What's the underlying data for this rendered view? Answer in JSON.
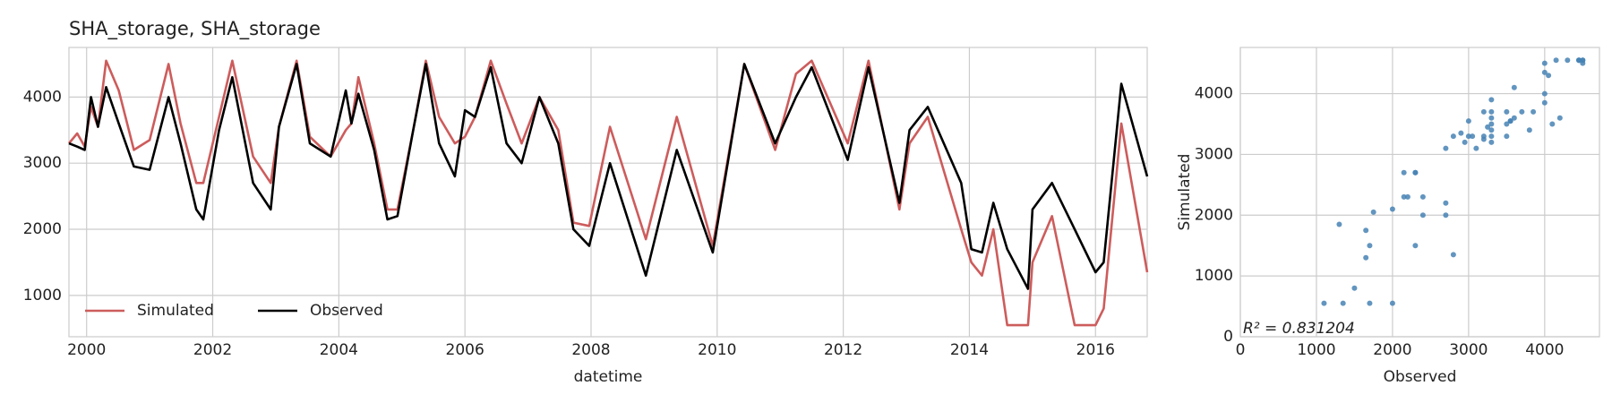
{
  "chart_data": [
    {
      "type": "line",
      "title": "SHA_storage, SHA_storage",
      "xlabel": "datetime",
      "x": [
        1999.72,
        1999.85,
        1999.97,
        2000.07,
        2000.18,
        2000.31,
        2000.51,
        2000.75,
        2001.0,
        2001.3,
        2001.49,
        2001.74,
        2001.85,
        2002.1,
        2002.31,
        2002.64,
        2002.92,
        2003.05,
        2003.33,
        2003.54,
        2003.87,
        2004.11,
        2004.2,
        2004.31,
        2004.56,
        2004.77,
        2004.93,
        2005.18,
        2005.38,
        2005.59,
        2005.84,
        2006.0,
        2006.16,
        2006.41,
        2006.66,
        2006.9,
        2007.18,
        2007.48,
        2007.72,
        2007.97,
        2008.3,
        2008.87,
        2009.36,
        2009.93,
        2010.43,
        2010.92,
        2011.25,
        2011.5,
        2012.07,
        2012.4,
        2012.89,
        2013.05,
        2013.34,
        2013.87,
        2014.03,
        2014.2,
        2014.38,
        2014.6,
        2014.93,
        2015.0,
        2015.31,
        2015.67,
        2016.0,
        2016.13,
        2016.41,
        2016.82
      ],
      "series": [
        {
          "name": "Simulated",
          "color": "#cd5c5c",
          "values": [
            3300,
            3450,
            3250,
            3850,
            3550,
            4550,
            4100,
            3200,
            3350,
            4500,
            3600,
            2700,
            2700,
            3700,
            4550,
            3100,
            2700,
            3550,
            4550,
            3400,
            3100,
            3500,
            3600,
            4300,
            3300,
            2300,
            2300,
            3500,
            4550,
            3700,
            3300,
            3400,
            3700,
            4550,
            3900,
            3300,
            4000,
            3500,
            2100,
            2050,
            3550,
            1850,
            3700,
            1750,
            4500,
            3200,
            4350,
            4550,
            3300,
            4550,
            2300,
            3300,
            3700,
            2000,
            1500,
            1300,
            2000,
            550,
            550,
            1500,
            2200,
            550,
            550,
            800,
            3600,
            1350
          ]
        },
        {
          "name": "Observed",
          "color": "#000000",
          "values": [
            3300,
            3250,
            3200,
            4000,
            3550,
            4150,
            3600,
            2950,
            2900,
            4000,
            3300,
            2300,
            2150,
            3500,
            4300,
            2700,
            2300,
            3550,
            4500,
            3300,
            3100,
            4100,
            3600,
            4050,
            3200,
            2150,
            2200,
            3500,
            4500,
            3300,
            2800,
            3800,
            3700,
            4450,
            3300,
            3000,
            4000,
            3300,
            2000,
            1750,
            3000,
            1300,
            3200,
            1650,
            4500,
            3300,
            4000,
            4450,
            3050,
            4450,
            2400,
            3500,
            3850,
            2700,
            1700,
            1650,
            2400,
            1700,
            1100,
            2300,
            2700,
            2000,
            1350,
            1500,
            4200,
            2800
          ]
        }
      ],
      "xlim": [
        1999.72,
        2016.82
      ],
      "xticks": [
        2000,
        2002,
        2004,
        2006,
        2008,
        2010,
        2012,
        2014,
        2016
      ],
      "ylim": [
        375,
        4750
      ],
      "yticks": [
        1000,
        2000,
        3000,
        4000
      ],
      "grid": true,
      "legend": "lower left"
    },
    {
      "type": "scatter",
      "xlabel": "Observed",
      "ylabel": "Simulated",
      "annotation": "R² = 0.831204",
      "color": "#4682b4",
      "x": [
        3300,
        3250,
        3200,
        4000,
        3550,
        4150,
        3600,
        2950,
        2900,
        4000,
        3300,
        2300,
        2150,
        3500,
        4300,
        2700,
        2300,
        3550,
        4500,
        3300,
        3100,
        4100,
        3600,
        4050,
        3200,
        2150,
        2200,
        3500,
        4500,
        3300,
        2800,
        3800,
        3700,
        4450,
        3300,
        3000,
        4000,
        3300,
        2000,
        1750,
        3000,
        1300,
        3200,
        1650,
        4500,
        3300,
        4000,
        4450,
        3050,
        4450,
        2400,
        3500,
        3850,
        2700,
        1700,
        1650,
        2400,
        1700,
        1100,
        2300,
        2700,
        2000,
        1350,
        1500,
        4200,
        2800
      ],
      "values": [
        3300,
        3450,
        3250,
        3850,
        3550,
        4550,
        4100,
        3200,
        3350,
        4500,
        3600,
        2700,
        2700,
        3700,
        4550,
        3100,
        2700,
        3550,
        4550,
        3400,
        3100,
        3500,
        3600,
        4300,
        3300,
        2300,
        2300,
        3500,
        4550,
        3700,
        3300,
        3400,
        3700,
        4550,
        3900,
        3300,
        4000,
        3500,
        2100,
        2050,
        3550,
        1850,
        3700,
        1750,
        4500,
        3200,
        4350,
        4550,
        3300,
        4550,
        2300,
        3300,
        3700,
        2000,
        1500,
        1300,
        2000,
        550,
        550,
        1500,
        2200,
        550,
        550,
        800,
        3600,
        1350
      ],
      "xlim": [
        0,
        4720
      ],
      "xticks": [
        0,
        1000,
        2000,
        3000,
        4000
      ],
      "ylim": [
        0,
        4760
      ],
      "yticks": [
        0,
        1000,
        2000,
        3000,
        4000
      ],
      "grid": true
    }
  ]
}
